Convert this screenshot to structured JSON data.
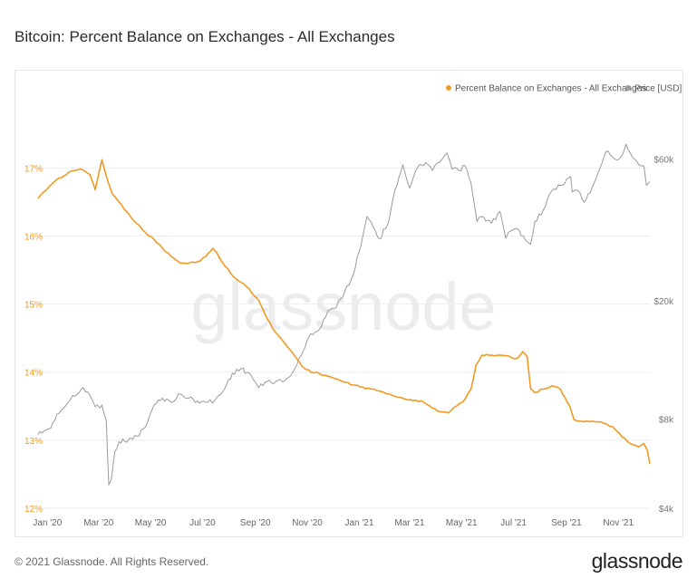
{
  "page": {
    "title": "Bitcoin: Percent Balance on Exchanges - All Exchanges",
    "copyright": "© 2021 Glassnode. All Rights Reserved.",
    "logo_text": "glassnode",
    "watermark": "glassnode"
  },
  "colors": {
    "balance": "#f09a23",
    "price": "#9a9a9a",
    "grid": "#ededed",
    "watermark": "#ececec"
  },
  "chart_data": {
    "type": "line",
    "title": "Bitcoin: Percent Balance on Exchanges - All Exchanges",
    "legend_position": "top-right",
    "grid": true,
    "x_ticks": [
      "Jan '20",
      "Mar '20",
      "May '20",
      "Jul '20",
      "Sep '20",
      "Nov '20",
      "Jan '21",
      "Mar '21",
      "May '21",
      "Jul '21",
      "Sep '21",
      "Nov '21"
    ],
    "x_tick_dates": [
      "2020-01-01",
      "2020-03-01",
      "2020-05-01",
      "2020-07-01",
      "2020-09-01",
      "2020-11-01",
      "2021-01-01",
      "2021-03-01",
      "2021-05-01",
      "2021-07-01",
      "2021-09-01",
      "2021-11-01"
    ],
    "xlim": [
      "2019-12-21",
      "2021-12-08"
    ],
    "left_axis": {
      "ticks": [
        "12%",
        "13%",
        "14%",
        "15%",
        "16%",
        "17%"
      ],
      "values": [
        12,
        13,
        14,
        15,
        16,
        17
      ],
      "ylim": [
        12,
        17.55
      ]
    },
    "right_axis": {
      "ticks": [
        "$4k",
        "$8k",
        "$20k",
        "$60k"
      ],
      "values": [
        4000,
        8000,
        20000,
        60000
      ],
      "scale": "log",
      "ylim": [
        4000,
        75000
      ]
    },
    "series": [
      {
        "name": "Percent Balance on Exchanges - All Exchanges",
        "axis": "left",
        "dates": [
          "2019-12-21",
          "2019-12-28",
          "2020-01-05",
          "2020-01-12",
          "2020-01-20",
          "2020-01-28",
          "2020-02-05",
          "2020-02-12",
          "2020-02-20",
          "2020-02-26",
          "2020-03-01",
          "2020-03-05",
          "2020-03-12",
          "2020-03-17",
          "2020-03-25",
          "2020-04-05",
          "2020-04-15",
          "2020-04-25",
          "2020-05-05",
          "2020-05-15",
          "2020-05-25",
          "2020-06-05",
          "2020-06-15",
          "2020-06-25",
          "2020-07-05",
          "2020-07-13",
          "2020-07-18",
          "2020-07-25",
          "2020-08-05",
          "2020-08-15",
          "2020-08-25",
          "2020-09-05",
          "2020-09-15",
          "2020-09-25",
          "2020-10-05",
          "2020-10-15",
          "2020-10-25",
          "2020-11-05",
          "2020-11-15",
          "2020-11-25",
          "2020-12-05",
          "2020-12-15",
          "2020-12-25",
          "2021-01-05",
          "2021-01-15",
          "2021-01-25",
          "2021-02-05",
          "2021-02-15",
          "2021-02-25",
          "2021-03-05",
          "2021-03-15",
          "2021-03-25",
          "2021-04-05",
          "2021-04-15",
          "2021-04-25",
          "2021-05-05",
          "2021-05-12",
          "2021-05-18",
          "2021-05-25",
          "2021-06-05",
          "2021-06-15",
          "2021-06-25",
          "2021-07-01",
          "2021-07-07",
          "2021-07-12",
          "2021-07-17",
          "2021-07-21",
          "2021-07-26",
          "2021-08-05",
          "2021-08-15",
          "2021-08-25",
          "2021-09-05",
          "2021-09-10",
          "2021-09-15",
          "2021-09-25",
          "2021-10-05",
          "2021-10-15",
          "2021-10-25",
          "2021-11-05",
          "2021-11-15",
          "2021-11-25",
          "2021-12-01",
          "2021-12-05",
          "2021-12-08"
        ],
        "values": [
          16.55,
          16.65,
          16.75,
          16.83,
          16.88,
          16.95,
          16.97,
          16.97,
          16.9,
          16.68,
          16.9,
          17.12,
          16.8,
          16.62,
          16.5,
          16.33,
          16.18,
          16.05,
          15.95,
          15.82,
          15.7,
          15.6,
          15.6,
          15.62,
          15.7,
          15.82,
          15.75,
          15.6,
          15.42,
          15.32,
          15.22,
          15.05,
          14.78,
          14.58,
          14.43,
          14.28,
          14.1,
          14.0,
          13.98,
          13.94,
          13.9,
          13.85,
          13.81,
          13.78,
          13.75,
          13.72,
          13.68,
          13.63,
          13.6,
          13.58,
          13.58,
          13.5,
          13.42,
          13.4,
          13.5,
          13.6,
          13.75,
          14.1,
          14.25,
          14.25,
          14.25,
          14.24,
          14.2,
          14.22,
          14.3,
          14.23,
          13.76,
          13.7,
          13.75,
          13.8,
          13.75,
          13.5,
          13.3,
          13.28,
          13.28,
          13.27,
          13.25,
          13.2,
          13.05,
          12.95,
          12.9,
          12.95,
          12.85,
          12.65
        ]
      },
      {
        "name": "Price [USD]",
        "axis": "right",
        "dates": [
          "2019-12-21",
          "2019-12-28",
          "2020-01-05",
          "2020-01-12",
          "2020-01-20",
          "2020-01-28",
          "2020-02-05",
          "2020-02-12",
          "2020-02-20",
          "2020-02-26",
          "2020-03-05",
          "2020-03-10",
          "2020-03-13",
          "2020-03-16",
          "2020-03-20",
          "2020-03-25",
          "2020-04-05",
          "2020-04-15",
          "2020-04-25",
          "2020-05-05",
          "2020-05-15",
          "2020-05-25",
          "2020-06-05",
          "2020-06-15",
          "2020-06-25",
          "2020-07-05",
          "2020-07-15",
          "2020-07-25",
          "2020-08-05",
          "2020-08-15",
          "2020-08-25",
          "2020-09-05",
          "2020-09-15",
          "2020-09-25",
          "2020-10-05",
          "2020-10-15",
          "2020-10-25",
          "2020-11-05",
          "2020-11-15",
          "2020-11-25",
          "2020-12-05",
          "2020-12-15",
          "2020-12-25",
          "2021-01-05",
          "2021-01-10",
          "2021-01-15",
          "2021-01-25",
          "2021-02-05",
          "2021-02-12",
          "2021-02-21",
          "2021-03-01",
          "2021-03-10",
          "2021-03-20",
          "2021-03-28",
          "2021-04-05",
          "2021-04-14",
          "2021-04-20",
          "2021-04-28",
          "2021-05-05",
          "2021-05-12",
          "2021-05-19",
          "2021-05-25",
          "2021-06-05",
          "2021-06-15",
          "2021-06-22",
          "2021-06-28",
          "2021-07-05",
          "2021-07-15",
          "2021-07-21",
          "2021-07-26",
          "2021-08-05",
          "2021-08-15",
          "2021-08-25",
          "2021-09-06",
          "2021-09-08",
          "2021-09-15",
          "2021-09-22",
          "2021-10-01",
          "2021-10-05",
          "2021-10-15",
          "2021-10-20",
          "2021-10-28",
          "2021-11-05",
          "2021-11-10",
          "2021-11-15",
          "2021-11-25",
          "2021-12-01",
          "2021-12-04",
          "2021-12-08"
        ],
        "values": [
          7100,
          7300,
          7450,
          8300,
          8700,
          9300,
          9700,
          10200,
          9600,
          8800,
          8900,
          7900,
          4800,
          5000,
          6200,
          6700,
          6800,
          7000,
          7500,
          8900,
          9400,
          9100,
          9700,
          9400,
          9200,
          9100,
          9200,
          9900,
          11400,
          11800,
          11400,
          10200,
          10700,
          10700,
          10700,
          11500,
          13100,
          15500,
          16000,
          18500,
          19000,
          21500,
          24500,
          33000,
          38500,
          36800,
          32300,
          37500,
          47500,
          57500,
          48000,
          56000,
          58500,
          55000,
          58500,
          63000,
          55500,
          55000,
          57000,
          50000,
          37000,
          38500,
          36500,
          40000,
          32500,
          34500,
          35000,
          32000,
          31000,
          37000,
          40500,
          47000,
          49000,
          52500,
          46500,
          47000,
          43000,
          48000,
          51000,
          61000,
          64000,
          60000,
          61500,
          67500,
          63000,
          57500,
          57000,
          49000,
          50500
        ]
      }
    ]
  }
}
